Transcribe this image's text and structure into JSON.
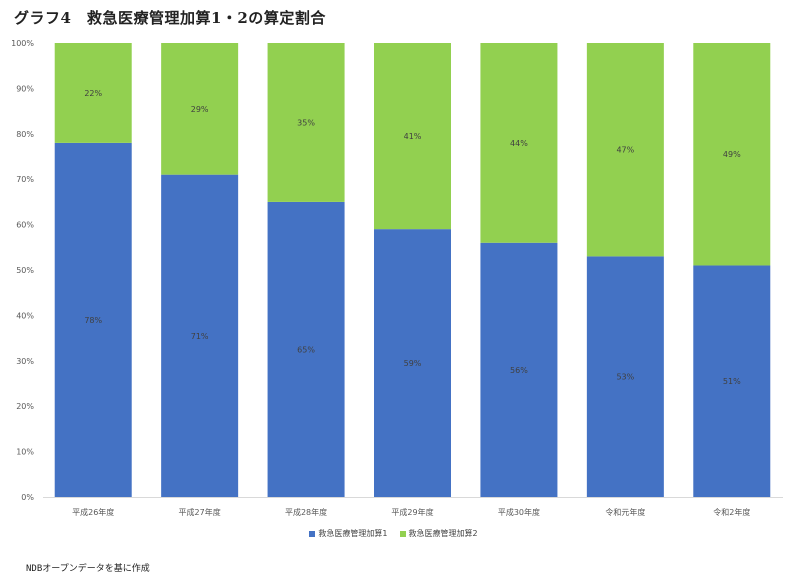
{
  "title": "グラフ4　救急医療管理加算1・2の算定割合",
  "source_note": "NDBオープンデータを基に作成",
  "colors": {
    "series1": "#4472C4",
    "series2": "#92D050",
    "axis": "#d9d9d9",
    "tick_text": "#595959",
    "data_label": "#404040"
  },
  "chart_data": {
    "type": "bar",
    "stacked": true,
    "percent": true,
    "categories": [
      "平成26年度",
      "平成27年度",
      "平成28年度",
      "平成29年度",
      "平成30年度",
      "令和元年度",
      "令和2年度"
    ],
    "series": [
      {
        "name": "救急医療管理加算1",
        "values": [
          78,
          71,
          65,
          59,
          56,
          53,
          51
        ],
        "labels": [
          "78%",
          "71%",
          "65%",
          "59%",
          "56%",
          "53%",
          "51%"
        ]
      },
      {
        "name": "救急医療管理加算2",
        "values": [
          22,
          29,
          35,
          41,
          44,
          47,
          49
        ],
        "labels": [
          "22%",
          "29%",
          "35%",
          "41%",
          "44%",
          "47%",
          "49%"
        ]
      }
    ],
    "y_ticks": [
      "0%",
      "10%",
      "20%",
      "30%",
      "40%",
      "50%",
      "60%",
      "70%",
      "80%",
      "90%",
      "100%"
    ],
    "ylim": [
      0,
      100
    ],
    "legend_position": "bottom",
    "grid": false
  }
}
